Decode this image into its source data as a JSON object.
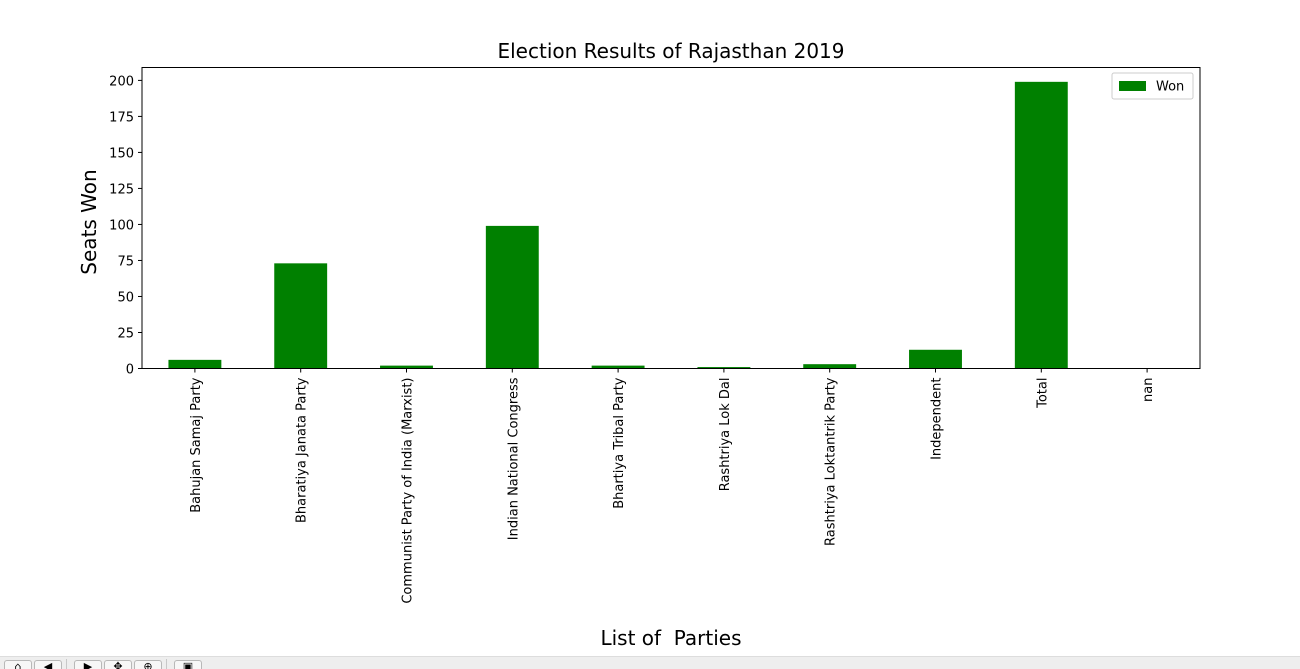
{
  "chart_data": {
    "type": "bar",
    "title": "Election Results of Rajasthan 2019",
    "xlabel": "List of  Parties",
    "ylabel": "Seats Won",
    "categories": [
      "Bahujan Samaj Party",
      "Bharatiya Janata Party",
      "Communist Party of India  (Marxist)",
      "Indian National Congress",
      "Bhartiya Tribal Party",
      "Rashtriya Lok Dal",
      "Rashtriya Loktantrik Party",
      "Independent",
      "Total",
      "nan"
    ],
    "series": [
      {
        "name": "Won",
        "values": [
          6,
          73,
          2,
          99,
          2,
          1,
          3,
          13,
          199,
          0
        ],
        "color": "#008000"
      }
    ],
    "yticks": [
      0,
      25,
      50,
      75,
      100,
      125,
      150,
      175,
      200
    ],
    "ylim": [
      0,
      208.95
    ],
    "grid": false,
    "legend": "top-right"
  },
  "toolbar": {
    "icons": [
      "home-icon",
      "back-icon",
      "forward-icon",
      "pan-icon",
      "zoom-icon",
      "configure-icon",
      "save-icon"
    ]
  }
}
